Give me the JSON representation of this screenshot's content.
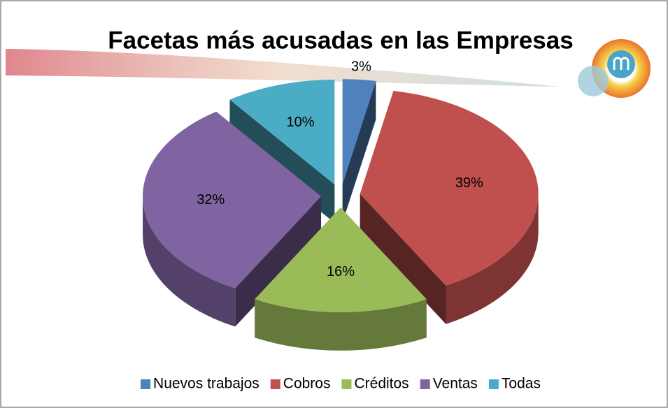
{
  "chart_data": {
    "type": "pie3d",
    "title": "Facetas más acusadas en las Empresas",
    "categories": [
      "Nuevos trabajos",
      "Cobros",
      "Créditos",
      "Ventas",
      "Todas"
    ],
    "values": [
      3,
      39,
      16,
      32,
      10
    ],
    "value_labels": [
      "3%",
      "39%",
      "16%",
      "32%",
      "10%"
    ],
    "colors": [
      "#4f81bd",
      "#c0504d",
      "#9bbb59",
      "#8064a2",
      "#4bacc6"
    ],
    "legend": "bottom"
  }
}
